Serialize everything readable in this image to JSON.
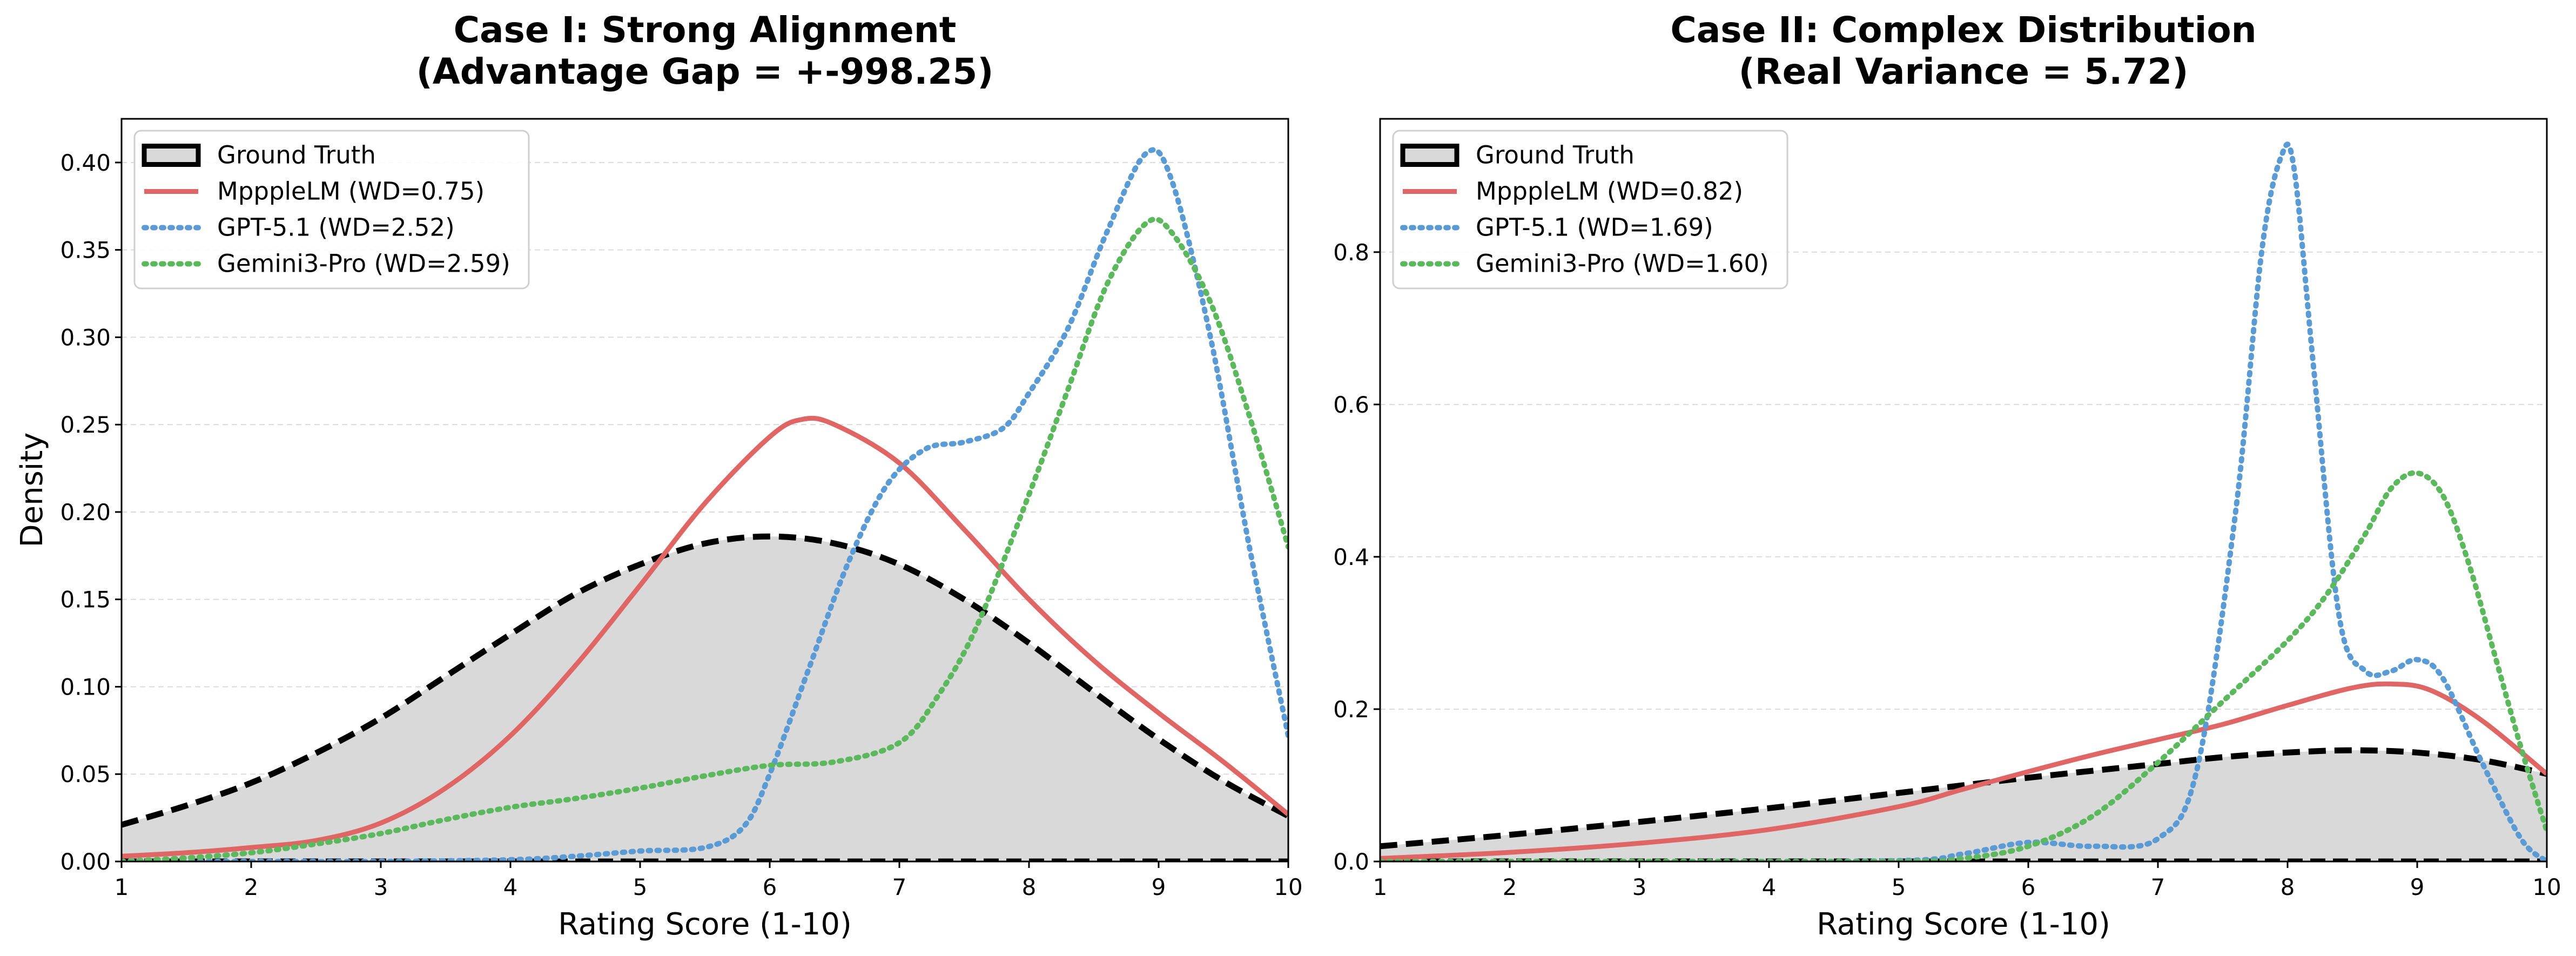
{
  "chart_data": [
    {
      "type": "line",
      "title": "Case I: Strong Alignment",
      "subtitle": "(Advantage Gap = +-998.25)",
      "xlabel": "Rating Score (1-10)",
      "ylabel": "Density",
      "xlim": [
        1,
        10
      ],
      "ylim": [
        0,
        0.425
      ],
      "xticks": [
        1,
        2,
        3,
        4,
        5,
        6,
        7,
        8,
        9,
        10
      ],
      "yticks": [
        0.0,
        0.05,
        0.1,
        0.15,
        0.2,
        0.25,
        0.3,
        0.35,
        0.4
      ],
      "ytick_labels": [
        "0.00",
        "0.05",
        "0.10",
        "0.15",
        "0.20",
        "0.25",
        "0.30",
        "0.35",
        "0.40"
      ],
      "grid": "y-dashed",
      "legend_position": "upper-left",
      "series": [
        {
          "name": "Ground Truth",
          "style": "dashed-filled",
          "color": "#000000",
          "fill": "#d9d9d9",
          "x": [
            1,
            1.5,
            2,
            2.5,
            3,
            3.5,
            4,
            4.5,
            5,
            5.5,
            6,
            6.5,
            7,
            7.5,
            8,
            8.5,
            9,
            9.5,
            10
          ],
          "y": [
            0.021,
            0.032,
            0.045,
            0.062,
            0.082,
            0.106,
            0.13,
            0.153,
            0.17,
            0.182,
            0.186,
            0.182,
            0.17,
            0.15,
            0.125,
            0.097,
            0.07,
            0.046,
            0.026
          ]
        },
        {
          "name": "MpppleLM (WD=0.75)",
          "style": "solid",
          "color": "#e06666",
          "x": [
            1,
            1.5,
            2,
            2.5,
            3,
            3.5,
            4,
            4.5,
            5,
            5.5,
            6,
            6.25,
            6.5,
            7,
            7.5,
            8,
            8.5,
            9,
            9.5,
            10
          ],
          "y": [
            0.003,
            0.005,
            0.008,
            0.012,
            0.022,
            0.042,
            0.072,
            0.112,
            0.158,
            0.205,
            0.243,
            0.253,
            0.25,
            0.228,
            0.19,
            0.15,
            0.115,
            0.085,
            0.057,
            0.027
          ]
        },
        {
          "name": "GPT-5.1 (WD=2.52)",
          "style": "dotted",
          "color": "#5b9bd5",
          "x": [
            1,
            2,
            3,
            4,
            4.5,
            5,
            5.5,
            5.8,
            6,
            6.3,
            6.6,
            6.9,
            7.2,
            7.5,
            7.8,
            8,
            8.3,
            8.6,
            8.9,
            9.1,
            9.4,
            9.7,
            10
          ],
          "y": [
            0.0,
            0.0,
            0.0,
            0.001,
            0.003,
            0.006,
            0.008,
            0.02,
            0.05,
            0.11,
            0.17,
            0.215,
            0.236,
            0.24,
            0.248,
            0.268,
            0.305,
            0.36,
            0.405,
            0.39,
            0.3,
            0.18,
            0.072
          ]
        },
        {
          "name": "Gemini3-Pro (WD=2.59)",
          "style": "dotted",
          "color": "#5cb85c",
          "x": [
            1,
            1.5,
            2,
            2.5,
            3,
            3.5,
            4,
            4.5,
            5,
            5.5,
            6,
            6.5,
            7,
            7.3,
            7.6,
            8,
            8.3,
            8.6,
            8.9,
            9.1,
            9.4,
            9.7,
            10
          ],
          "y": [
            0.0,
            0.002,
            0.005,
            0.01,
            0.016,
            0.024,
            0.031,
            0.036,
            0.042,
            0.049,
            0.055,
            0.057,
            0.068,
            0.095,
            0.135,
            0.21,
            0.27,
            0.33,
            0.365,
            0.36,
            0.32,
            0.255,
            0.18
          ]
        }
      ]
    },
    {
      "type": "line",
      "title": "Case II: Complex Distribution",
      "subtitle": "(Real Variance = 5.72)",
      "xlabel": "Rating Score (1-10)",
      "ylabel": "",
      "xlim": [
        1,
        10
      ],
      "ylim": [
        0,
        0.975
      ],
      "xticks": [
        1,
        2,
        3,
        4,
        5,
        6,
        7,
        8,
        9,
        10
      ],
      "yticks": [
        0.0,
        0.2,
        0.4,
        0.6,
        0.8
      ],
      "ytick_labels": [
        "0.0",
        "0.2",
        "0.4",
        "0.6",
        "0.8"
      ],
      "grid": "y-dashed",
      "legend_position": "upper-left",
      "series": [
        {
          "name": "Ground Truth",
          "style": "dashed-filled",
          "color": "#000000",
          "fill": "#d9d9d9",
          "x": [
            1,
            2,
            3,
            4,
            5,
            6,
            7,
            7.5,
            8,
            8.5,
            9,
            9.5,
            10
          ],
          "y": [
            0.02,
            0.035,
            0.052,
            0.07,
            0.09,
            0.11,
            0.128,
            0.137,
            0.143,
            0.146,
            0.143,
            0.133,
            0.115
          ]
        },
        {
          "name": "MpppleLM (WD=0.82)",
          "style": "solid",
          "color": "#e06666",
          "x": [
            1,
            2,
            3,
            4,
            5,
            5.5,
            6,
            6.5,
            7,
            7.5,
            8,
            8.5,
            8.8,
            9.1,
            9.5,
            10
          ],
          "y": [
            0.004,
            0.012,
            0.024,
            0.042,
            0.072,
            0.095,
            0.118,
            0.14,
            0.16,
            0.18,
            0.205,
            0.228,
            0.233,
            0.225,
            0.185,
            0.115
          ]
        },
        {
          "name": "GPT-5.1 (WD=1.69)",
          "style": "dotted",
          "color": "#5b9bd5",
          "x": [
            1,
            3,
            5,
            5.5,
            6,
            6.5,
            7,
            7.3,
            7.6,
            7.8,
            7.95,
            8.05,
            8.2,
            8.4,
            8.6,
            8.8,
            9,
            9.2,
            9.5,
            9.8,
            10
          ],
          "y": [
            0.0,
            0.0,
            0.001,
            0.01,
            0.025,
            0.02,
            0.03,
            0.12,
            0.46,
            0.8,
            0.925,
            0.91,
            0.65,
            0.32,
            0.25,
            0.25,
            0.265,
            0.24,
            0.13,
            0.03,
            0.0
          ]
        },
        {
          "name": "Gemini3-Pro (WD=1.60)",
          "style": "dotted",
          "color": "#5cb85c",
          "x": [
            1,
            3,
            5,
            5.5,
            6,
            6.5,
            7,
            7.5,
            8,
            8.3,
            8.6,
            8.8,
            9,
            9.2,
            9.4,
            9.6,
            9.8,
            10
          ],
          "y": [
            0.0,
            0.0,
            0.0,
            0.004,
            0.02,
            0.06,
            0.13,
            0.21,
            0.29,
            0.35,
            0.43,
            0.49,
            0.51,
            0.48,
            0.39,
            0.27,
            0.15,
            0.04
          ]
        }
      ]
    }
  ]
}
